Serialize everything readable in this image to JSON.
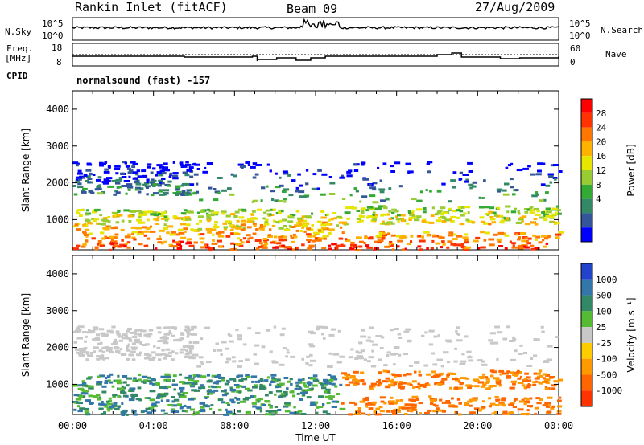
{
  "header": {
    "station": "Rankin Inlet (fitACF)",
    "beam": "Beam 09",
    "date": "27/Aug/2009"
  },
  "top_panel": {
    "left_label": "N.Sky",
    "right_label": "N.Search",
    "left_ticks": [
      "10^5",
      "10^0"
    ],
    "right_ticks": [
      "10^5",
      "10^0"
    ]
  },
  "freq_panel": {
    "left_label": "Freq.",
    "left_unit": "[MHz]",
    "left_ticks": [
      "18",
      "8"
    ],
    "right_label": "Nave",
    "right_ticks": [
      "60",
      "0"
    ]
  },
  "cpid": {
    "label": "CPID",
    "text": "normalsound (fast) -157"
  },
  "chart_data": [
    {
      "type": "heatmap",
      "title": "",
      "ylabel": "Slant Range [km]",
      "xlabel": "",
      "xlim": [
        "00:00",
        "24:00"
      ],
      "ylim": [
        180,
        4500
      ],
      "y_ticks": [
        1000,
        2000,
        3000,
        4000
      ],
      "colorbar": {
        "label": "Power [dB]",
        "ticks": [
          28,
          24,
          20,
          16,
          12,
          8,
          4
        ],
        "colors": [
          "#ff0000",
          "#ff3300",
          "#ff7700",
          "#ffb300",
          "#e6e600",
          "#99cc33",
          "#33aa33",
          "#338866",
          "#335599",
          "#0000ff"
        ]
      }
    },
    {
      "type": "heatmap",
      "title": "",
      "ylabel": "Slant Range [km]",
      "xlabel": "Time UT",
      "xlim": [
        "00:00",
        "24:00"
      ],
      "ylim": [
        180,
        4500
      ],
      "x_ticks": [
        "00:00",
        "04:00",
        "08:00",
        "12:00",
        "16:00",
        "20:00",
        "00:00"
      ],
      "y_ticks": [
        1000,
        2000,
        3000,
        4000
      ],
      "colorbar": {
        "label": "Velocity [m s⁻¹]",
        "ticks": [
          1000,
          500,
          100,
          25,
          -25,
          -100,
          -500,
          -1000
        ],
        "colors": [
          "#2244cc",
          "#3377aa",
          "#338866",
          "#55bb33",
          "#c8c8c8",
          "#ffcc00",
          "#ff9900",
          "#ff6600",
          "#ff3300"
        ]
      }
    }
  ]
}
